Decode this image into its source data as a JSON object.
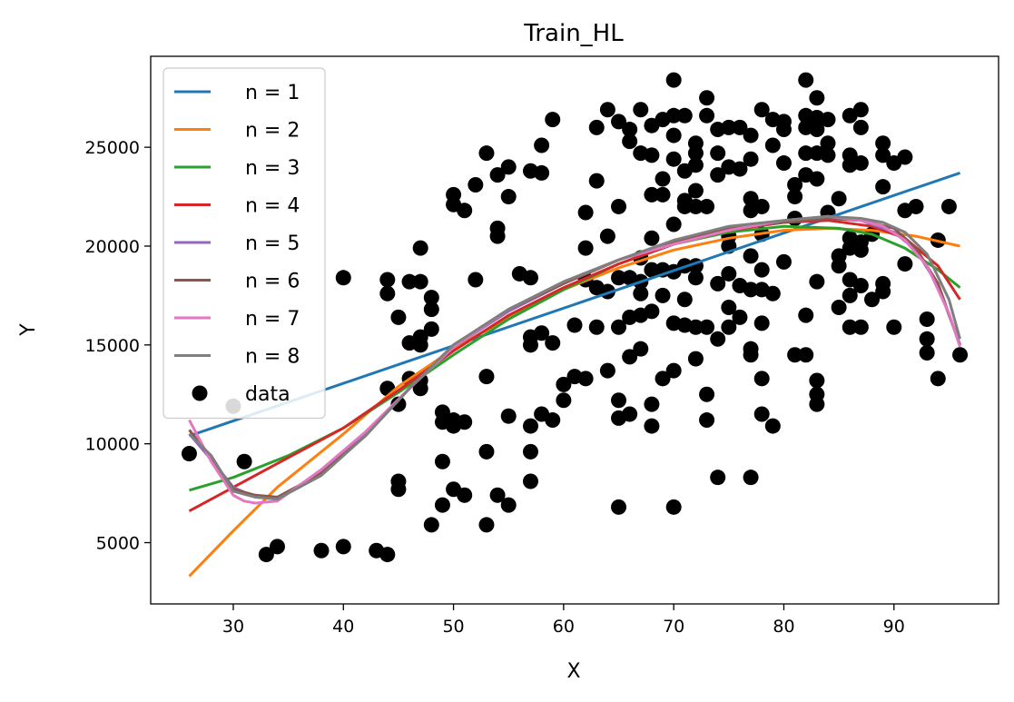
{
  "chart_data": {
    "type": "line",
    "title": "Train_HL",
    "xlabel": "X",
    "ylabel": "Y",
    "xlim": [
      22.5,
      99.5
    ],
    "ylim": [
      1900,
      29600
    ],
    "xticks": [
      30,
      40,
      50,
      60,
      70,
      80,
      90
    ],
    "yticks": [
      5000,
      10000,
      15000,
      20000,
      25000
    ],
    "legend_position": "upper-left",
    "series": [
      {
        "name": "n = 1",
        "color": "#1f77b4",
        "x": [
          26,
          96
        ],
        "y": [
          10400,
          23700
        ]
      },
      {
        "name": "n = 2",
        "color": "#ff7f0e",
        "x": [
          26,
          30,
          34,
          40,
          45,
          50,
          55,
          60,
          65,
          70,
          75,
          80,
          84,
          88,
          92,
          96
        ],
        "y": [
          3300,
          5600,
          7800,
          10500,
          12900,
          14800,
          16400,
          17800,
          18900,
          19800,
          20400,
          20800,
          20900,
          20800,
          20500,
          20000
        ]
      },
      {
        "name": "n = 3",
        "color": "#2ca02c",
        "x": [
          26,
          30,
          35,
          40,
          45,
          50,
          55,
          60,
          65,
          70,
          75,
          80,
          85,
          88,
          91,
          94,
          96
        ],
        "y": [
          7650,
          8300,
          9400,
          10800,
          12600,
          14500,
          16300,
          17800,
          19100,
          20100,
          20700,
          21000,
          20900,
          20600,
          19900,
          18800,
          17900
        ]
      },
      {
        "name": "n = 4",
        "color": "#d62728",
        "x": [
          26,
          30,
          35,
          40,
          45,
          50,
          55,
          60,
          65,
          70,
          75,
          80,
          84,
          88,
          91,
          94,
          96
        ],
        "y": [
          6600,
          7800,
          9300,
          10800,
          12700,
          14700,
          16500,
          17900,
          19100,
          20100,
          20800,
          21200,
          21300,
          21000,
          20400,
          19000,
          17300
        ]
      },
      {
        "name": "n = 5",
        "color": "#9467bd",
        "x": [
          26,
          28,
          30,
          32,
          34,
          38,
          42,
          46,
          50,
          55,
          60,
          65,
          70,
          75,
          80,
          84,
          87,
          90,
          92,
          94,
          96
        ],
        "y": [
          10500,
          9200,
          7800,
          7300,
          7200,
          8600,
          10500,
          12800,
          14900,
          16700,
          18100,
          19300,
          20200,
          20900,
          21200,
          21400,
          21300,
          20700,
          19800,
          18000,
          15000
        ]
      },
      {
        "name": "n = 6",
        "color": "#8c564b",
        "x": [
          26,
          28,
          30,
          32,
          34,
          38,
          42,
          46,
          50,
          55,
          60,
          65,
          70,
          75,
          80,
          84,
          87,
          90,
          92,
          94,
          96
        ],
        "y": [
          10700,
          9300,
          7700,
          7400,
          7300,
          8500,
          10400,
          12800,
          15000,
          16800,
          18100,
          19300,
          20200,
          20900,
          21200,
          21400,
          21300,
          20900,
          19900,
          18100,
          15000
        ]
      },
      {
        "name": "n = 7",
        "color": "#e377c2",
        "x": [
          26,
          28,
          30,
          31,
          32,
          34,
          38,
          42,
          46,
          50,
          55,
          60,
          65,
          70,
          75,
          80,
          84,
          87,
          89,
          91,
          93,
          95,
          96
        ],
        "y": [
          11200,
          9100,
          7400,
          7100,
          7000,
          7100,
          8700,
          10600,
          12800,
          14900,
          16800,
          18200,
          19300,
          20100,
          20800,
          21300,
          21500,
          21300,
          21000,
          20300,
          19000,
          16600,
          14900
        ]
      },
      {
        "name": "n = 8",
        "color": "#7f7f7f",
        "x": [
          26,
          28,
          30,
          32,
          34,
          38,
          42,
          46,
          50,
          55,
          60,
          65,
          70,
          75,
          80,
          84,
          87,
          89,
          91,
          93,
          95,
          96
        ],
        "y": [
          10500,
          9400,
          7600,
          7300,
          7200,
          8400,
          10400,
          12800,
          15000,
          16800,
          18200,
          19300,
          20300,
          21000,
          21300,
          21500,
          21400,
          21200,
          20700,
          19600,
          17300,
          15300
        ]
      }
    ],
    "scatter": {
      "name": "data",
      "color": "#000000",
      "points": [
        [
          26,
          9500
        ],
        [
          30,
          11900
        ],
        [
          31,
          9100
        ],
        [
          33,
          4400
        ],
        [
          34,
          4800
        ],
        [
          38,
          4600
        ],
        [
          40,
          18400
        ],
        [
          40,
          4800
        ],
        [
          43,
          4600
        ],
        [
          44,
          4400
        ],
        [
          44,
          12800
        ],
        [
          44,
          17600
        ],
        [
          44,
          18300
        ],
        [
          45,
          16400
        ],
        [
          45,
          12000
        ],
        [
          45,
          8100
        ],
        [
          45,
          7700
        ],
        [
          46,
          15100
        ],
        [
          46,
          18200
        ],
        [
          46,
          13300
        ],
        [
          47,
          15400
        ],
        [
          47,
          15000
        ],
        [
          47,
          13200
        ],
        [
          47,
          12800
        ],
        [
          47,
          18200
        ],
        [
          47,
          19900
        ],
        [
          48,
          17400
        ],
        [
          48,
          16800
        ],
        [
          48,
          15800
        ],
        [
          48,
          5900
        ],
        [
          49,
          11600
        ],
        [
          49,
          11100
        ],
        [
          49,
          9100
        ],
        [
          49,
          6900
        ],
        [
          50,
          22600
        ],
        [
          50,
          22100
        ],
        [
          50,
          11200
        ],
        [
          50,
          10900
        ],
        [
          50,
          7700
        ],
        [
          51,
          21800
        ],
        [
          51,
          11100
        ],
        [
          51,
          7400
        ],
        [
          52,
          23100
        ],
        [
          52,
          18300
        ],
        [
          53,
          24700
        ],
        [
          53,
          13400
        ],
        [
          53,
          9600
        ],
        [
          53,
          5900
        ],
        [
          54,
          23600
        ],
        [
          54,
          20900
        ],
        [
          54,
          20500
        ],
        [
          54,
          7400
        ],
        [
          55,
          24000
        ],
        [
          55,
          22500
        ],
        [
          55,
          11400
        ],
        [
          55,
          6900
        ],
        [
          56,
          18600
        ],
        [
          57,
          23800
        ],
        [
          57,
          18400
        ],
        [
          57,
          15400
        ],
        [
          57,
          15000
        ],
        [
          57,
          10900
        ],
        [
          57,
          9600
        ],
        [
          57,
          8100
        ],
        [
          58,
          25100
        ],
        [
          58,
          23700
        ],
        [
          58,
          15600
        ],
        [
          58,
          11500
        ],
        [
          59,
          26400
        ],
        [
          59,
          15100
        ],
        [
          59,
          11200
        ],
        [
          60,
          12200
        ],
        [
          60,
          13000
        ],
        [
          61,
          16000
        ],
        [
          61,
          13400
        ],
        [
          62,
          21700
        ],
        [
          62,
          19900
        ],
        [
          62,
          18300
        ],
        [
          62,
          13300
        ],
        [
          63,
          26000
        ],
        [
          63,
          23300
        ],
        [
          63,
          17900
        ],
        [
          63,
          15900
        ],
        [
          64,
          26900
        ],
        [
          64,
          20500
        ],
        [
          64,
          17700
        ],
        [
          64,
          13700
        ],
        [
          65,
          26300
        ],
        [
          65,
          22000
        ],
        [
          65,
          18400
        ],
        [
          65,
          15900
        ],
        [
          65,
          12200
        ],
        [
          65,
          11300
        ],
        [
          65,
          6800
        ],
        [
          66,
          25900
        ],
        [
          66,
          25300
        ],
        [
          66,
          18400
        ],
        [
          66,
          16400
        ],
        [
          66,
          14400
        ],
        [
          66,
          11500
        ],
        [
          67,
          26900
        ],
        [
          67,
          24700
        ],
        [
          67,
          19400
        ],
        [
          67,
          18200
        ],
        [
          67,
          17600
        ],
        [
          67,
          16500
        ],
        [
          67,
          14800
        ],
        [
          68,
          26100
        ],
        [
          68,
          24600
        ],
        [
          68,
          22600
        ],
        [
          68,
          20400
        ],
        [
          68,
          18800
        ],
        [
          68,
          16700
        ],
        [
          68,
          12000
        ],
        [
          68,
          10900
        ],
        [
          69,
          26400
        ],
        [
          69,
          23400
        ],
        [
          69,
          22600
        ],
        [
          69,
          18800
        ],
        [
          69,
          17500
        ],
        [
          69,
          13300
        ],
        [
          70,
          28400
        ],
        [
          70,
          26600
        ],
        [
          70,
          25600
        ],
        [
          70,
          24400
        ],
        [
          70,
          21100
        ],
        [
          70,
          18700
        ],
        [
          70,
          16100
        ],
        [
          70,
          13700
        ],
        [
          70,
          6800
        ],
        [
          71,
          26600
        ],
        [
          71,
          23800
        ],
        [
          71,
          22300
        ],
        [
          71,
          22000
        ],
        [
          71,
          19000
        ],
        [
          71,
          17300
        ],
        [
          71,
          16000
        ],
        [
          72,
          25200
        ],
        [
          72,
          24700
        ],
        [
          72,
          24100
        ],
        [
          72,
          22800
        ],
        [
          72,
          22000
        ],
        [
          72,
          19000
        ],
        [
          72,
          18400
        ],
        [
          72,
          15900
        ],
        [
          72,
          14300
        ],
        [
          73,
          27500
        ],
        [
          73,
          26600
        ],
        [
          73,
          22000
        ],
        [
          73,
          15900
        ],
        [
          73,
          12500
        ],
        [
          73,
          11200
        ],
        [
          74,
          25900
        ],
        [
          74,
          24700
        ],
        [
          74,
          23600
        ],
        [
          74,
          18100
        ],
        [
          74,
          15300
        ],
        [
          74,
          8300
        ],
        [
          75,
          26000
        ],
        [
          75,
          24000
        ],
        [
          75,
          20500
        ],
        [
          75,
          20000
        ],
        [
          75,
          18600
        ],
        [
          75,
          16900
        ],
        [
          75,
          15900
        ],
        [
          76,
          26000
        ],
        [
          76,
          23900
        ],
        [
          76,
          18000
        ],
        [
          76,
          16400
        ],
        [
          77,
          25600
        ],
        [
          77,
          24400
        ],
        [
          77,
          22400
        ],
        [
          77,
          21800
        ],
        [
          77,
          19500
        ],
        [
          77,
          17800
        ],
        [
          77,
          14800
        ],
        [
          77,
          14500
        ],
        [
          77,
          8300
        ],
        [
          78,
          26900
        ],
        [
          78,
          22000
        ],
        [
          78,
          20600
        ],
        [
          78,
          18800
        ],
        [
          78,
          17800
        ],
        [
          78,
          16100
        ],
        [
          78,
          13300
        ],
        [
          78,
          11500
        ],
        [
          79,
          26400
        ],
        [
          79,
          25100
        ],
        [
          79,
          17600
        ],
        [
          79,
          10900
        ],
        [
          80,
          26300
        ],
        [
          80,
          25900
        ],
        [
          80,
          24200
        ],
        [
          80,
          19200
        ],
        [
          81,
          23100
        ],
        [
          81,
          22500
        ],
        [
          81,
          21400
        ],
        [
          81,
          14500
        ],
        [
          82,
          26600
        ],
        [
          82,
          26000
        ],
        [
          82,
          24700
        ],
        [
          82,
          23600
        ],
        [
          82,
          16500
        ],
        [
          82,
          14500
        ],
        [
          82,
          28400
        ],
        [
          83,
          27500
        ],
        [
          83,
          26500
        ],
        [
          83,
          25900
        ],
        [
          83,
          24700
        ],
        [
          83,
          23400
        ],
        [
          83,
          18200
        ],
        [
          83,
          13200
        ],
        [
          83,
          12500
        ],
        [
          83,
          12000
        ],
        [
          84,
          26400
        ],
        [
          84,
          25200
        ],
        [
          84,
          24600
        ],
        [
          84,
          21700
        ],
        [
          85,
          22400
        ],
        [
          85,
          19500
        ],
        [
          85,
          19000
        ],
        [
          85,
          16900
        ],
        [
          86,
          26600
        ],
        [
          86,
          24600
        ],
        [
          86,
          24100
        ],
        [
          86,
          20400
        ],
        [
          86,
          19900
        ],
        [
          86,
          18300
        ],
        [
          86,
          17500
        ],
        [
          86,
          15900
        ],
        [
          87,
          26900
        ],
        [
          87,
          26000
        ],
        [
          87,
          24200
        ],
        [
          87,
          20200
        ],
        [
          87,
          19800
        ],
        [
          87,
          18000
        ],
        [
          87,
          15900
        ],
        [
          88,
          20600
        ],
        [
          88,
          17300
        ],
        [
          89,
          25200
        ],
        [
          89,
          24600
        ],
        [
          89,
          23000
        ],
        [
          89,
          18100
        ],
        [
          89,
          17700
        ],
        [
          90,
          24200
        ],
        [
          90,
          15900
        ],
        [
          91,
          24500
        ],
        [
          91,
          21800
        ],
        [
          91,
          19100
        ],
        [
          92,
          22000
        ],
        [
          93,
          16300
        ],
        [
          93,
          15300
        ],
        [
          93,
          14600
        ],
        [
          94,
          20300
        ],
        [
          94,
          13300
        ],
        [
          95,
          22000
        ],
        [
          96,
          14500
        ]
      ]
    }
  }
}
